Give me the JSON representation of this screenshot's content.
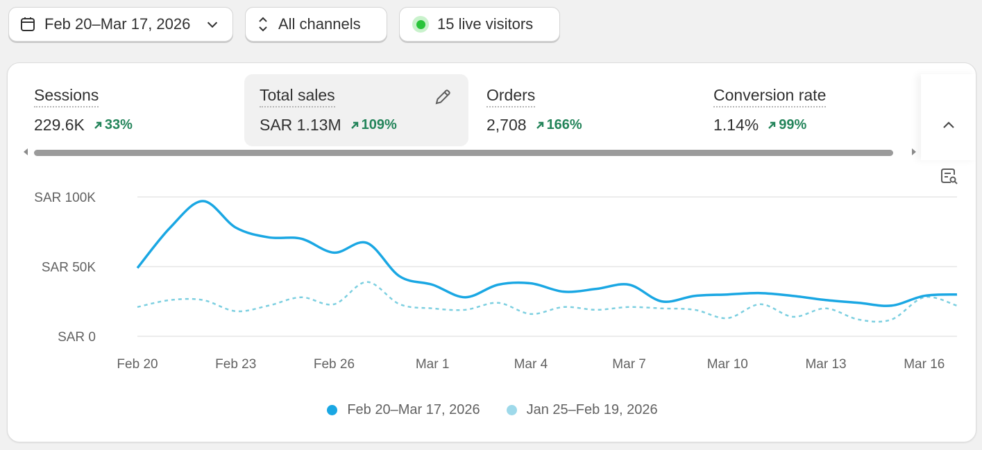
{
  "toolbar": {
    "date_range": "Feb 20–Mar 17, 2026",
    "channels": "All channels",
    "live_visitors": "15 live visitors"
  },
  "metrics": [
    {
      "title": "Sessions",
      "value": "229.6K",
      "change": "33%"
    },
    {
      "title": "Total sales",
      "value": "SAR 1.13M",
      "change": "109%"
    },
    {
      "title": "Orders",
      "value": "2,708",
      "change": "166%"
    },
    {
      "title": "Conversion rate",
      "value": "1.14%",
      "change": "99%"
    }
  ],
  "colors": {
    "current_series": "#1aa7e3",
    "previous_series": "#7ccfe0",
    "positive_change": "#23845a",
    "live_dot": "#29c43a"
  },
  "chart_data": {
    "type": "line",
    "y_tick_labels": [
      "SAR 100K",
      "SAR 50K",
      "SAR 0"
    ],
    "y_ticks": [
      100000,
      50000,
      0
    ],
    "ylim": [
      0,
      100000
    ],
    "x_tick_labels": [
      "Feb 20",
      "Feb 23",
      "Feb 26",
      "Mar 1",
      "Mar 4",
      "Mar 7",
      "Mar 10",
      "Mar 13",
      "Mar 16"
    ],
    "x_dates": [
      "Feb 20",
      "Feb 21",
      "Feb 22",
      "Feb 23",
      "Feb 24",
      "Feb 25",
      "Feb 26",
      "Feb 27",
      "Feb 28",
      "Mar 1",
      "Mar 2",
      "Mar 3",
      "Mar 4",
      "Mar 5",
      "Mar 6",
      "Mar 7",
      "Mar 8",
      "Mar 9",
      "Mar 10",
      "Mar 11",
      "Mar 12",
      "Mar 13",
      "Mar 14",
      "Mar 15",
      "Mar 16",
      "Mar 17"
    ],
    "grid": true,
    "series": [
      {
        "name": "Feb 20–Mar 17, 2026",
        "style": "solid",
        "values": [
          49000,
          78000,
          97000,
          78000,
          71000,
          70000,
          60000,
          67000,
          43000,
          37000,
          28000,
          37000,
          38000,
          32000,
          34000,
          37000,
          25000,
          29000,
          30000,
          31000,
          29000,
          26000,
          24000,
          22000,
          29000,
          30000
        ]
      },
      {
        "name": "Jan 25–Feb 19, 2026",
        "style": "dashed",
        "values": [
          21000,
          26000,
          26000,
          18000,
          22000,
          28000,
          23000,
          39000,
          23000,
          20000,
          19000,
          24000,
          16000,
          21000,
          19000,
          21000,
          20000,
          19000,
          13000,
          23000,
          14000,
          20000,
          12000,
          12000,
          28000,
          22000
        ]
      }
    ]
  }
}
